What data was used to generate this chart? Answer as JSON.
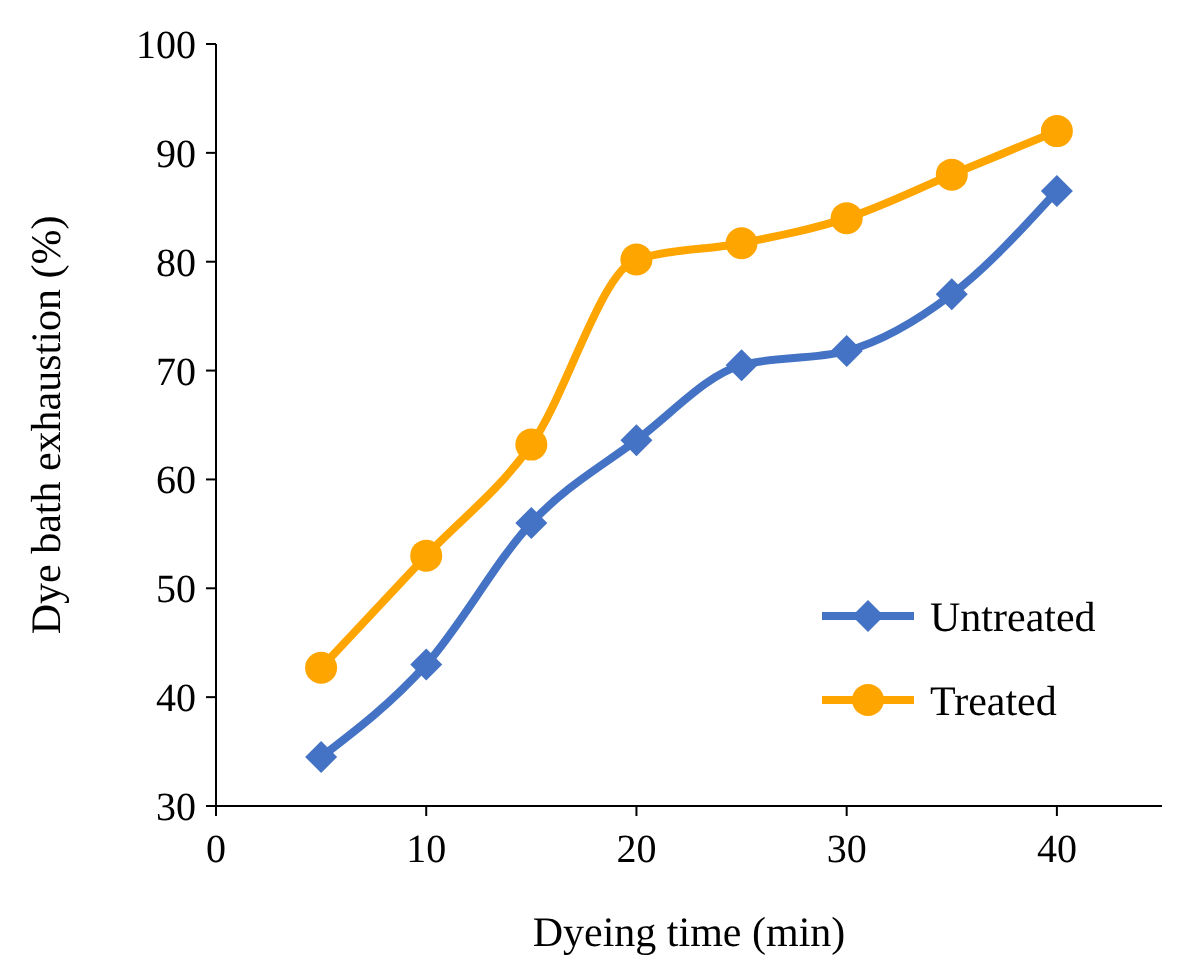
{
  "chart_data": {
    "type": "line",
    "xlabel": "Dyeing time (min)",
    "ylabel": "Dye bath exhaustion (%)",
    "x": [
      5,
      10,
      15,
      20,
      25,
      30,
      35,
      40
    ],
    "series": [
      {
        "name": "Untreated",
        "color": "#4472c4",
        "marker": "diamond",
        "values": [
          34.5,
          43,
          56,
          63.6,
          70.5,
          71.8,
          77,
          86.5
        ]
      },
      {
        "name": "Treated",
        "color": "#ffa500",
        "marker": "circle",
        "values": [
          42.7,
          53,
          63.2,
          80.2,
          81.7,
          84,
          88,
          92
        ]
      }
    ],
    "xlim": [
      0,
      45
    ],
    "xticks": [
      0,
      10,
      20,
      30,
      40
    ],
    "ylim": [
      30,
      100
    ],
    "yticks": [
      30,
      40,
      50,
      60,
      70,
      80,
      90,
      100
    ],
    "grid": false,
    "legend": "bottom right",
    "line_style": "solid"
  }
}
